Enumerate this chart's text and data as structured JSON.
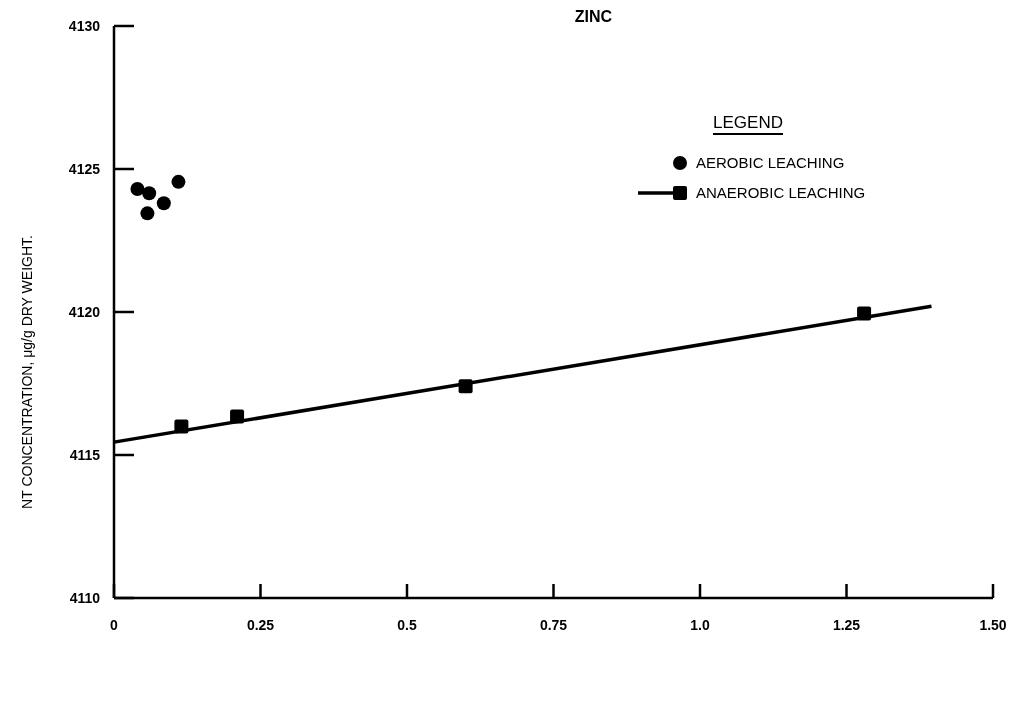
{
  "chart_data": {
    "type": "scatter",
    "title": "ZINC",
    "ylabel": "NT CONCENTRATION, μg/g DRY WEIGHT.",
    "legend_title": "LEGEND",
    "xlim": [
      0,
      1.5
    ],
    "xticks": [
      0,
      0.25,
      0.5,
      0.75,
      {
        "value": 1,
        "label": "1.0"
      },
      1.25,
      {
        "value": 1.5,
        "label": "1.50"
      }
    ],
    "ylim": [
      4110,
      4130
    ],
    "yticks": [
      4110,
      4115,
      4120,
      4125,
      4130
    ],
    "grid": false,
    "legend": "top right",
    "series": [
      {
        "name": "AEROBIC LEACHING",
        "marker": "circle",
        "color": "#000000",
        "x": [
          0.04,
          0.06,
          0.057,
          0.085,
          0.11
        ],
        "values": [
          4124.3,
          4124.15,
          4123.45,
          4123.8,
          4124.55
        ]
      },
      {
        "name": "ANAEROBIC LEACHING",
        "marker": "square",
        "color": "#000000",
        "x": [
          0.115,
          0.21,
          0.6,
          1.28
        ],
        "values": [
          4116.0,
          4116.35,
          4117.4,
          4119.95
        ]
      },
      {
        "type": "line",
        "marker": "none",
        "line_style": "solid",
        "color": "#000000",
        "x": [
          0,
          1.395
        ],
        "values": [
          4115.45,
          4120.2
        ]
      }
    ]
  }
}
